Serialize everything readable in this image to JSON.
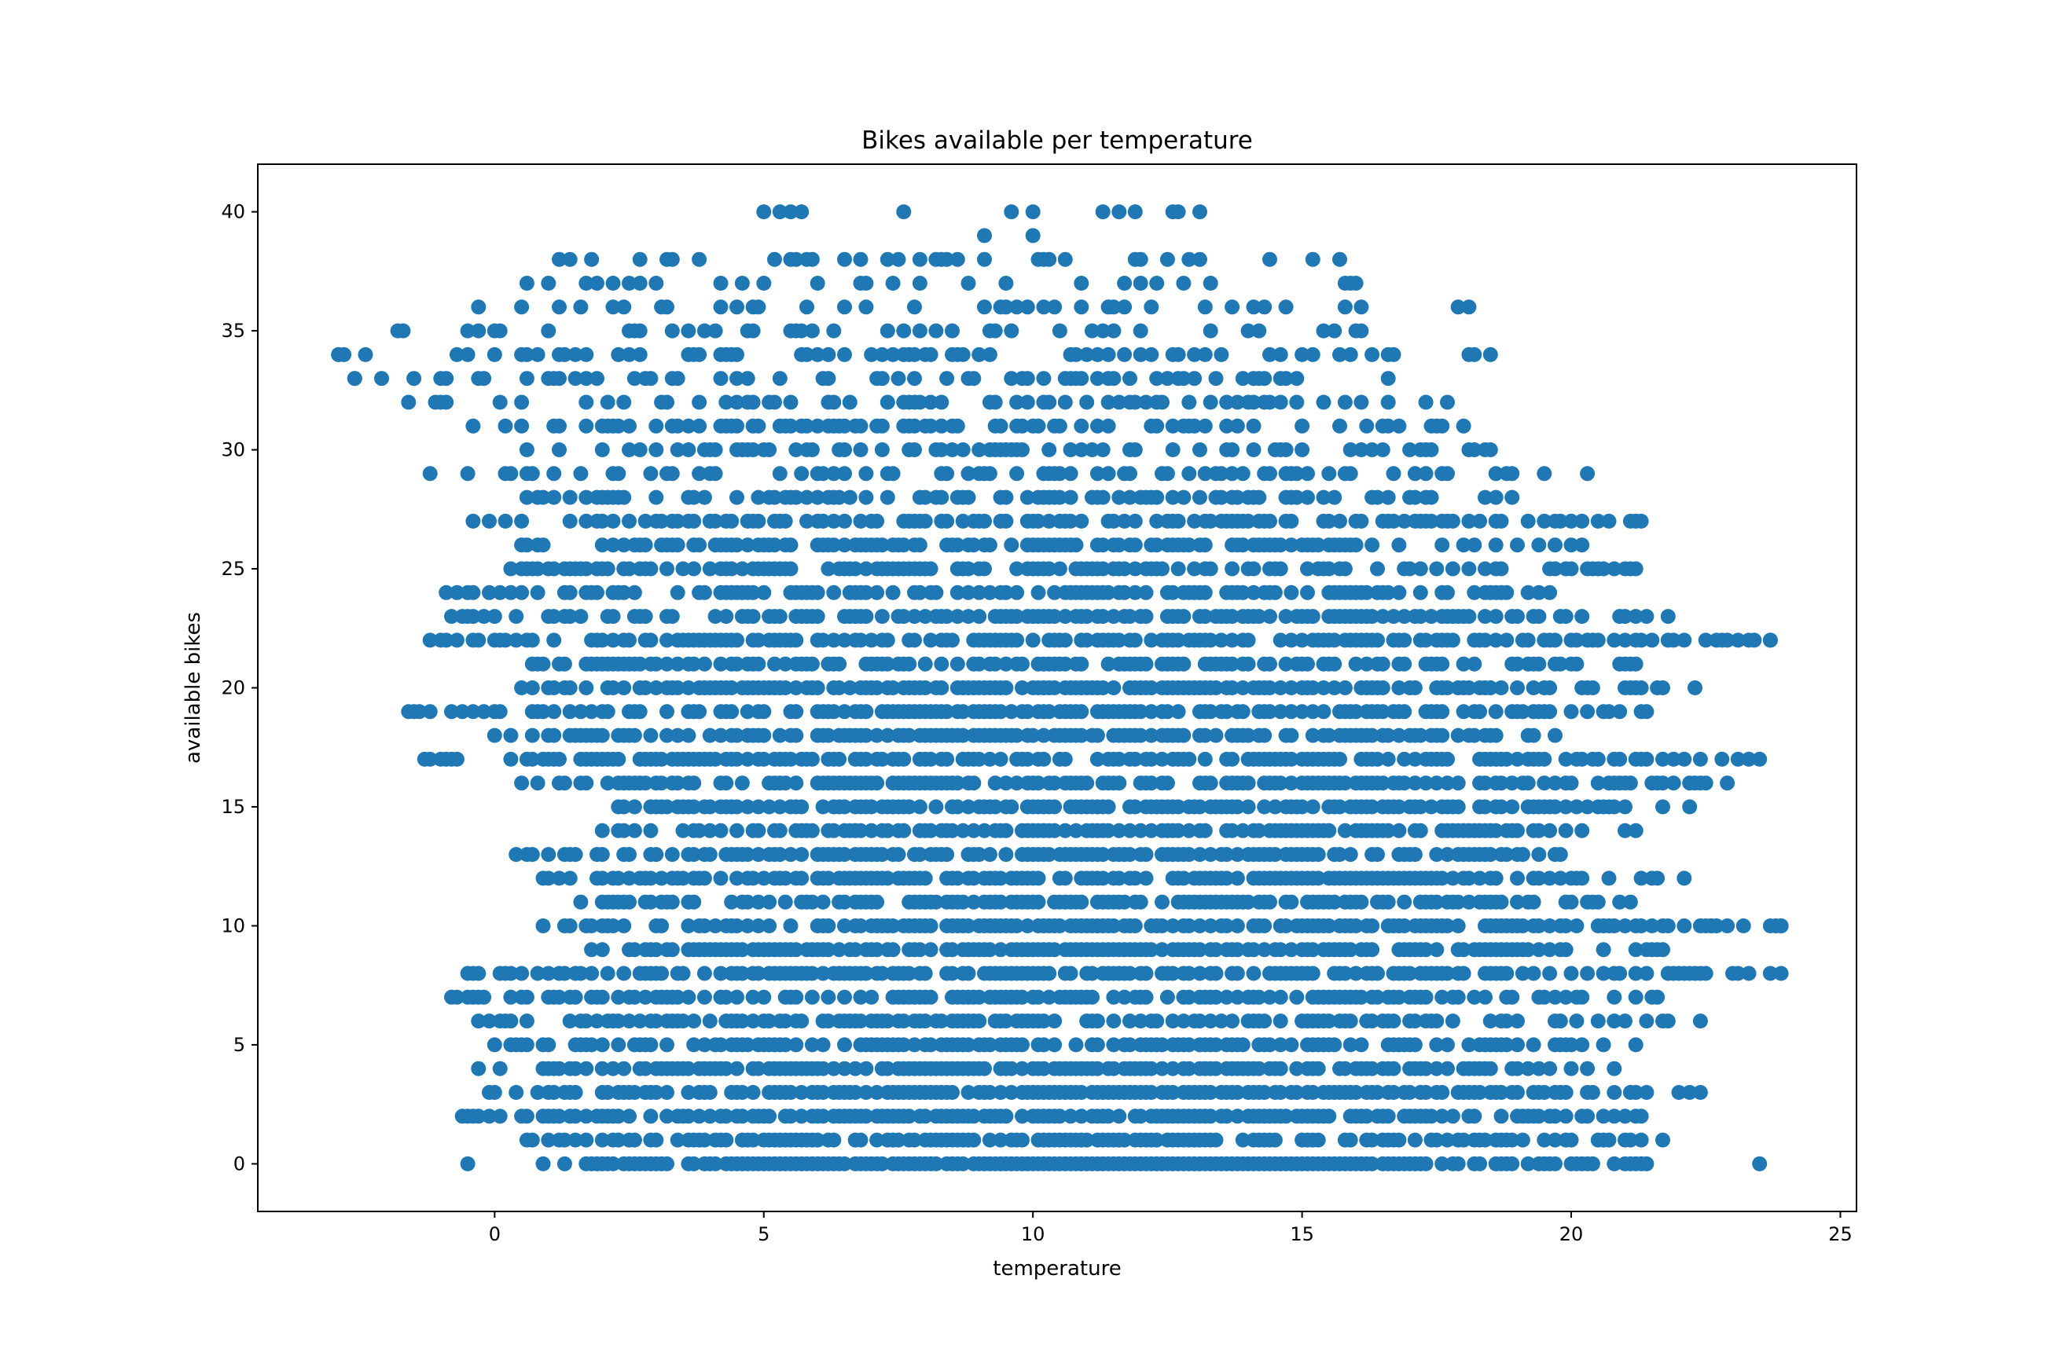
{
  "chart_data": {
    "type": "scatter",
    "title": "Bikes available per temperature",
    "xlabel": "temperature",
    "ylabel": "available bikes",
    "xlim": [
      -4.4,
      25.3
    ],
    "ylim": [
      -2,
      42
    ],
    "xticks": [
      0,
      5,
      10,
      15,
      20,
      25
    ],
    "yticks": [
      0,
      5,
      10,
      15,
      20,
      25,
      30,
      35,
      40
    ],
    "grid": false,
    "legend": "none",
    "marker_color": "#1f77b4",
    "density_model": {
      "by_value": [
        {
          "y": 0,
          "x_range": [
            0.9,
            21.4
          ],
          "density": 1.0
        },
        {
          "y": 1,
          "x_range": [
            0.5,
            21.8
          ],
          "density": 0.8
        },
        {
          "y": 2,
          "x_range": [
            -0.6,
            21.3
          ],
          "density": 0.75
        },
        {
          "y": 3,
          "x_range": [
            -0.2,
            22.3
          ],
          "density": 0.75
        },
        {
          "y": 4,
          "x_range": [
            -0.5,
            21.0
          ],
          "density": 0.75
        },
        {
          "y": 5,
          "x_range": [
            0.0,
            21.7
          ],
          "density": 0.75
        },
        {
          "y": 6,
          "x_range": [
            -0.4,
            22.3
          ],
          "density": 0.7
        },
        {
          "y": 7,
          "x_range": [
            -0.8,
            21.8
          ],
          "density": 0.7
        },
        {
          "y": 8,
          "x_range": [
            -0.7,
            23.9
          ],
          "density": 0.7
        },
        {
          "y": 9,
          "x_range": [
            1.3,
            21.8
          ],
          "density": 0.72
        },
        {
          "y": 10,
          "x_range": [
            0.9,
            23.9
          ],
          "density": 0.72
        },
        {
          "y": 11,
          "x_range": [
            1.4,
            21.1
          ],
          "density": 0.75
        },
        {
          "y": 12,
          "x_range": [
            0.8,
            22.1
          ],
          "density": 0.75
        },
        {
          "y": 13,
          "x_range": [
            0.4,
            21.2
          ],
          "density": 0.72
        },
        {
          "y": 14,
          "x_range": [
            1.6,
            21.2
          ],
          "density": 0.72
        },
        {
          "y": 15,
          "x_range": [
            1.7,
            22.1
          ],
          "density": 0.78
        },
        {
          "y": 16,
          "x_range": [
            0.2,
            22.9
          ],
          "density": 0.72
        },
        {
          "y": 17,
          "x_range": [
            -1.3,
            23.5
          ],
          "density": 0.72
        },
        {
          "y": 18,
          "x_range": [
            0.0,
            19.8
          ],
          "density": 0.75
        },
        {
          "y": 19,
          "x_range": [
            -1.6,
            21.4
          ],
          "density": 0.72
        },
        {
          "y": 20,
          "x_range": [
            0.2,
            22.3
          ],
          "density": 0.72
        },
        {
          "y": 21,
          "x_range": [
            0.5,
            21.3
          ],
          "density": 0.68
        },
        {
          "y": 22,
          "x_range": [
            -1.2,
            23.7
          ],
          "density": 0.68
        },
        {
          "y": 23,
          "x_range": [
            -0.7,
            21.8
          ],
          "density": 0.65
        },
        {
          "y": 24,
          "x_range": [
            -0.9,
            19.7
          ],
          "density": 0.62
        },
        {
          "y": 25,
          "x_range": [
            0.2,
            21.2
          ],
          "density": 0.58
        },
        {
          "y": 26,
          "x_range": [
            0.2,
            20.2
          ],
          "density": 0.58
        },
        {
          "y": 27,
          "x_range": [
            -0.6,
            21.2
          ],
          "density": 0.55
        },
        {
          "y": 28,
          "x_range": [
            0.2,
            19.5
          ],
          "density": 0.52
        },
        {
          "y": 29,
          "x_range": [
            -1.2,
            20.2
          ],
          "density": 0.45
        },
        {
          "y": 30,
          "x_range": [
            0.6,
            19.0
          ],
          "density": 0.42
        },
        {
          "y": 31,
          "x_range": [
            -0.5,
            18.0
          ],
          "density": 0.45
        },
        {
          "y": 32,
          "x_range": [
            -1.6,
            17.7
          ],
          "density": 0.4
        },
        {
          "y": 33,
          "x_range": [
            -2.6,
            17.2
          ],
          "density": 0.3
        },
        {
          "y": 34,
          "x_range": [
            -3.0,
            18.5
          ],
          "density": 0.28
        },
        {
          "y": 35,
          "x_range": [
            -1.8,
            16.6
          ],
          "density": 0.25
        },
        {
          "y": 36,
          "x_range": [
            -0.5,
            18.1
          ],
          "density": 0.2
        },
        {
          "y": 37,
          "x_range": [
            0.2,
            16.0
          ],
          "density": 0.2
        },
        {
          "y": 38,
          "x_range": [
            1.1,
            16.0
          ],
          "density": 0.18
        },
        {
          "y": 39,
          "x_range": [
            5.0,
            11.5
          ],
          "density": 0.12
        },
        {
          "y": 40,
          "x_range": [
            4.0,
            13.3
          ],
          "density": 0.18
        }
      ],
      "isolated_points": [
        [
          23.5,
          0
        ],
        [
          22.4,
          3
        ],
        [
          22.4,
          6
        ],
        [
          23.9,
          8
        ],
        [
          22.6,
          10
        ],
        [
          23.9,
          10
        ],
        [
          22.1,
          12
        ],
        [
          22.2,
          15
        ],
        [
          22.9,
          16
        ],
        [
          23.5,
          17
        ],
        [
          22.3,
          20
        ],
        [
          23.7,
          22
        ],
        [
          21.8,
          23
        ],
        [
          21.3,
          27
        ],
        [
          20.3,
          29
        ],
        [
          18.5,
          34
        ],
        [
          18.1,
          36
        ],
        [
          -2.6,
          33
        ],
        [
          -2.9,
          34
        ],
        [
          -2.4,
          34
        ],
        [
          -1.6,
          32
        ],
        [
          -1.8,
          35
        ],
        [
          -1.2,
          29
        ],
        [
          -1.3,
          17
        ],
        [
          -1.6,
          19
        ],
        [
          -0.8,
          23
        ],
        [
          -0.9,
          24
        ],
        [
          -0.4,
          31
        ],
        [
          -0.5,
          0
        ],
        [
          -0.6,
          2
        ]
      ]
    }
  }
}
